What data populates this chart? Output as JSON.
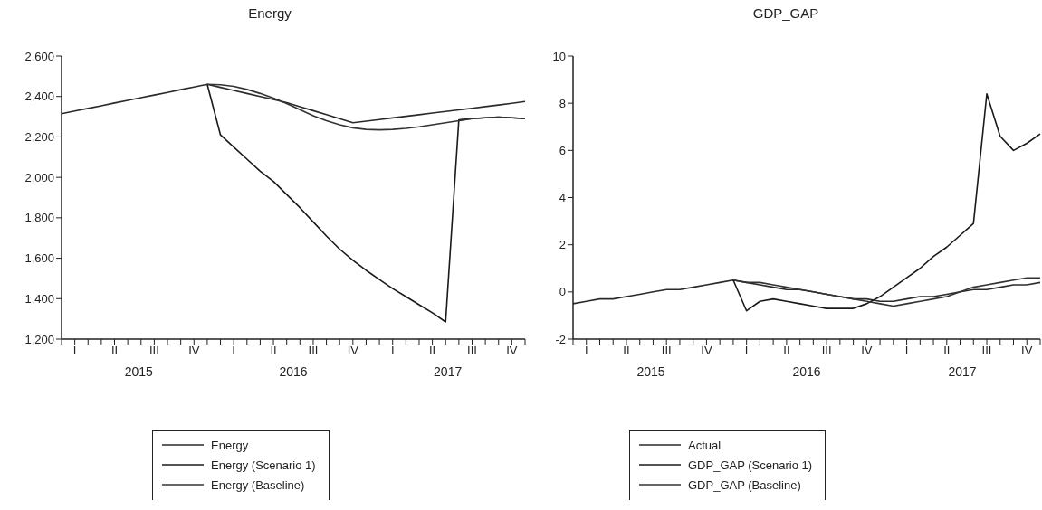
{
  "chart_data": [
    {
      "type": "line",
      "title": "Energy",
      "legend": "bottom",
      "categories": [
        null,
        "I",
        null,
        null,
        "II",
        null,
        null,
        "III",
        null,
        null,
        "IV",
        null,
        null,
        "I",
        null,
        null,
        "II",
        null,
        null,
        "III",
        null,
        null,
        "IV",
        null,
        null,
        "I",
        null,
        null,
        "II",
        null,
        null,
        "III",
        null,
        null,
        "IV",
        null
      ],
      "annotations": [
        "2015",
        "2016",
        "2017"
      ],
      "ylim": [
        1200,
        2600
      ],
      "yticks": [
        {
          "value": 1200,
          "label": "1,200"
        },
        {
          "value": 1400,
          "label": "1,400"
        },
        {
          "value": 1600,
          "label": "1,600"
        },
        {
          "value": 1800,
          "label": "1,800"
        },
        {
          "value": 2000,
          "label": "2,000"
        },
        {
          "value": 2200,
          "label": "2,200"
        },
        {
          "value": 2400,
          "label": "2,400"
        },
        {
          "value": 2600,
          "label": "2,600"
        }
      ],
      "series": [
        {
          "name": "Energy",
          "color": "#2a2a2a",
          "values": [
            2315,
            2328,
            2341,
            2354,
            2368,
            2381,
            2394,
            2407,
            2420,
            2434,
            2447,
            2460,
            2445,
            2430,
            2415,
            2400,
            2385,
            2370,
            2350,
            2330,
            2310,
            2290,
            2270,
            2278,
            2286,
            2294,
            2302,
            2310,
            2318,
            2326,
            2334,
            2342,
            2350,
            2358,
            2366,
            2375
          ]
        },
        {
          "name": "Energy (Scenario 1)",
          "color": "#1a1a1a",
          "values": [
            null,
            null,
            null,
            null,
            null,
            null,
            null,
            null,
            null,
            null,
            null,
            2460,
            2210,
            2150,
            2090,
            2030,
            1980,
            1915,
            1850,
            1780,
            1710,
            1645,
            1590,
            1540,
            1495,
            1450,
            1410,
            1370,
            1330,
            1285,
            2285,
            2290,
            2295,
            2298,
            2295,
            2290
          ]
        },
        {
          "name": "Energy (Baseline)",
          "color": "#333333",
          "values": [
            null,
            null,
            null,
            null,
            null,
            null,
            null,
            null,
            null,
            null,
            null,
            2460,
            2458,
            2450,
            2435,
            2415,
            2392,
            2365,
            2335,
            2305,
            2280,
            2260,
            2245,
            2237,
            2235,
            2237,
            2242,
            2250,
            2260,
            2270,
            2280,
            2290,
            2295,
            2298,
            2295,
            2290
          ]
        }
      ]
    },
    {
      "type": "line",
      "title": "GDP_GAP",
      "legend": "bottom",
      "categories": [
        null,
        "I",
        null,
        null,
        "II",
        null,
        null,
        "III",
        null,
        null,
        "IV",
        null,
        null,
        "I",
        null,
        null,
        "II",
        null,
        null,
        "III",
        null,
        null,
        "IV",
        null,
        null,
        "I",
        null,
        null,
        "II",
        null,
        null,
        "III",
        null,
        null,
        "IV",
        null
      ],
      "annotations": [
        "2015",
        "2016",
        "2017"
      ],
      "ylim": [
        -2,
        10
      ],
      "yticks": [
        -2,
        0,
        2,
        4,
        6,
        8,
        10
      ],
      "series": [
        {
          "name": "Actual",
          "color": "#2a2a2a",
          "values": [
            -0.5,
            -0.4,
            -0.3,
            -0.3,
            -0.2,
            -0.1,
            0,
            0.1,
            0.1,
            0.2,
            0.3,
            0.4,
            0.5,
            0.4,
            0.3,
            0.2,
            0.1,
            0.1,
            0,
            -0.1,
            -0.2,
            -0.3,
            -0.3,
            -0.4,
            -0.4,
            -0.3,
            -0.2,
            -0.2,
            -0.1,
            0,
            0.1,
            0.1,
            0.2,
            0.3,
            0.3,
            0.4
          ]
        },
        {
          "name": "GDP_GAP (Scenario 1)",
          "color": "#1a1a1a",
          "values": [
            null,
            null,
            null,
            null,
            null,
            null,
            null,
            null,
            null,
            null,
            null,
            null,
            0.5,
            -0.8,
            -0.4,
            -0.3,
            -0.4,
            -0.5,
            -0.6,
            -0.7,
            -0.7,
            -0.7,
            -0.5,
            -0.2,
            0.2,
            0.6,
            1.0,
            1.5,
            1.9,
            2.4,
            2.9,
            8.4,
            6.6,
            6.0,
            6.3,
            6.7
          ]
        },
        {
          "name": "GDP_GAP (Baseline)",
          "color": "#333333",
          "values": [
            null,
            null,
            null,
            null,
            null,
            null,
            null,
            null,
            null,
            null,
            null,
            null,
            0.5,
            0.4,
            0.4,
            0.3,
            0.2,
            0.1,
            0,
            -0.1,
            -0.2,
            -0.3,
            -0.4,
            -0.5,
            -0.6,
            -0.5,
            -0.4,
            -0.3,
            -0.2,
            0,
            0.2,
            0.3,
            0.4,
            0.5,
            0.6,
            0.6
          ]
        }
      ]
    }
  ]
}
